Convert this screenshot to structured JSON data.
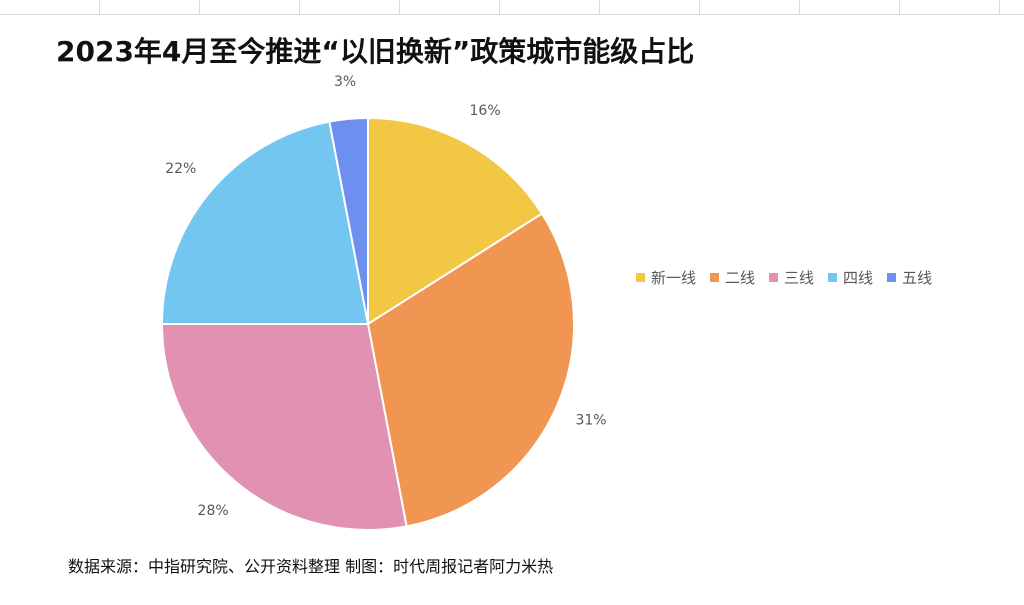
{
  "chart_data": {
    "type": "pie",
    "title": "2023年4月至今推进“以旧换新”政策城市能级占比",
    "categories": [
      "新一线",
      "二线",
      "三线",
      "四线",
      "五线"
    ],
    "values": [
      16,
      31,
      28,
      22,
      3
    ],
    "data_labels": [
      "16%",
      "31%",
      "28%",
      "22%",
      "3%"
    ],
    "colors": [
      "#F2C744",
      "#F09552",
      "#E191B2",
      "#73C6F0",
      "#6D8FF0"
    ],
    "legend_position": "right"
  },
  "source": "数据来源：中指研究院、公开资料整理 制图：时代周报记者阿力米热"
}
